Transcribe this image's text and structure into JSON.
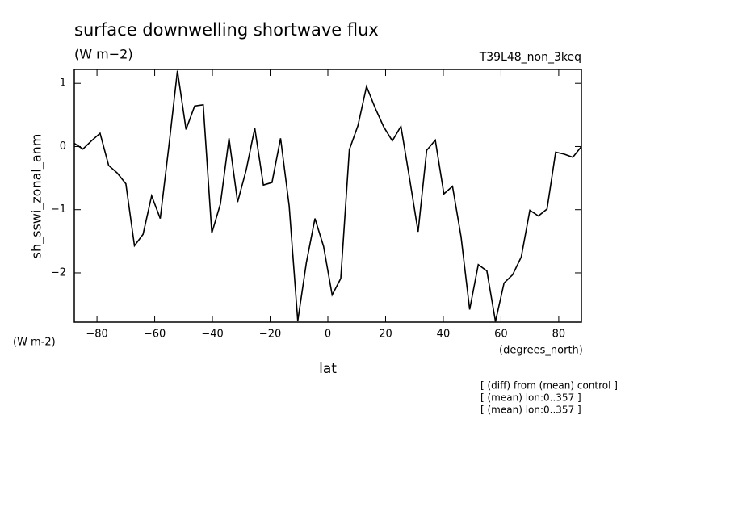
{
  "chart_data": {
    "type": "line",
    "title": "surface downwelling shortwave flux",
    "subtitle": "(W m−2)",
    "run_label": "T39L48_non_3keq",
    "y_label": "sh_sswi_zonal_anm",
    "y_units": "(W m-2)",
    "x_label": "lat",
    "x_units": "(degrees_north)",
    "notes": [
      "[ (diff) from (mean) control ]",
      "[ (mean) lon:0..357 ]",
      "[ (mean) lon:0..357 ]"
    ],
    "x": [
      -87.86,
      -84.88,
      -81.9,
      -78.93,
      -75.95,
      -72.97,
      -69.99,
      -67.01,
      -64.03,
      -61.06,
      -58.08,
      -55.1,
      -52.12,
      -49.14,
      -46.16,
      -43.19,
      -40.21,
      -37.23,
      -34.25,
      -31.27,
      -28.29,
      -25.32,
      -22.34,
      -19.36,
      -16.38,
      -13.4,
      -10.42,
      -7.45,
      -4.47,
      -1.49,
      1.49,
      4.47,
      7.45,
      10.42,
      13.4,
      16.38,
      19.36,
      22.34,
      25.32,
      28.29,
      31.27,
      34.25,
      37.23,
      40.21,
      43.19,
      46.16,
      49.14,
      52.12,
      55.1,
      58.08,
      61.06,
      64.03,
      67.01,
      69.99,
      72.97,
      75.95,
      78.93,
      81.9,
      84.88,
      87.86
    ],
    "series": [
      {
        "color": "#000000",
        "values": [
          0.05,
          -0.04,
          0.09,
          0.21,
          -0.3,
          -0.42,
          -0.59,
          -1.57,
          -1.39,
          -0.78,
          -1.14,
          0.0,
          1.2,
          0.27,
          0.64,
          0.66,
          -1.37,
          -0.91,
          0.13,
          -0.88,
          -0.37,
          0.29,
          -0.61,
          -0.57,
          0.13,
          -0.94,
          -2.76,
          -1.84,
          -1.14,
          -1.58,
          -2.35,
          -2.09,
          -0.05,
          0.33,
          0.95,
          0.61,
          0.31,
          0.09,
          0.32,
          -0.5,
          -1.35,
          -0.06,
          0.1,
          -0.75,
          -0.63,
          -1.43,
          -2.58,
          -1.87,
          -1.97,
          -2.77,
          -2.16,
          -2.03,
          -1.75,
          -1.01,
          -1.1,
          -0.99,
          -0.09,
          -0.12,
          -0.17,
          0.0
        ]
      }
    ],
    "xlim": [
      -87.86,
      87.86
    ],
    "ylim": [
      -2.78,
      1.22
    ],
    "xticks": [
      {
        "value": -80,
        "label": "−80"
      },
      {
        "value": -60,
        "label": "−60"
      },
      {
        "value": -40,
        "label": "−40"
      },
      {
        "value": -20,
        "label": "−20"
      },
      0,
      20,
      40,
      60,
      80
    ],
    "yticks": [
      {
        "value": -2,
        "label": "−2"
      },
      {
        "value": -1,
        "label": "−1"
      },
      0,
      1
    ]
  }
}
